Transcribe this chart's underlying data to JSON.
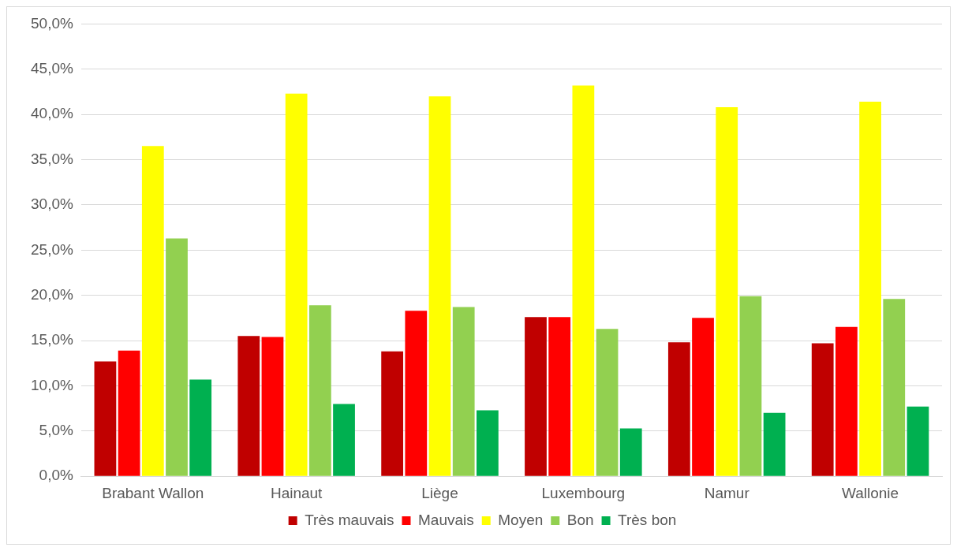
{
  "chart_data": {
    "type": "bar",
    "categories": [
      "Brabant Wallon",
      "Hainaut",
      "Liège",
      "Luxembourg",
      "Namur",
      "Wallonie"
    ],
    "series": [
      {
        "name": "Très mauvais",
        "color": "#c00000",
        "values": [
          12.7,
          15.5,
          13.8,
          17.6,
          14.8,
          14.7
        ]
      },
      {
        "name": "Mauvais",
        "color": "#ff0000",
        "values": [
          13.9,
          15.4,
          18.3,
          17.6,
          17.5,
          16.5
        ]
      },
      {
        "name": "Moyen",
        "color": "#ffff00",
        "values": [
          36.5,
          42.3,
          42.0,
          43.2,
          40.8,
          41.4
        ]
      },
      {
        "name": "Bon",
        "color": "#92d050",
        "values": [
          26.3,
          18.9,
          18.7,
          16.3,
          19.9,
          19.6
        ]
      },
      {
        "name": "Très bon",
        "color": "#00b050",
        "values": [
          10.7,
          8.0,
          7.3,
          5.3,
          7.0,
          7.7
        ]
      }
    ],
    "ylim": [
      0,
      50
    ],
    "yticks": [
      {
        "value": 0,
        "label": "0,0%"
      },
      {
        "value": 5,
        "label": "5,0%"
      },
      {
        "value": 10,
        "label": "10,0%"
      },
      {
        "value": 15,
        "label": "15,0%"
      },
      {
        "value": 20,
        "label": "20,0%"
      },
      {
        "value": 25,
        "label": "25,0%"
      },
      {
        "value": 30,
        "label": "30,0%"
      },
      {
        "value": 35,
        "label": "35,0%"
      },
      {
        "value": 40,
        "label": "40,0%"
      },
      {
        "value": 45,
        "label": "45,0%"
      },
      {
        "value": 50,
        "label": "50,0%"
      }
    ],
    "grid": "y",
    "legend": "bottom"
  }
}
